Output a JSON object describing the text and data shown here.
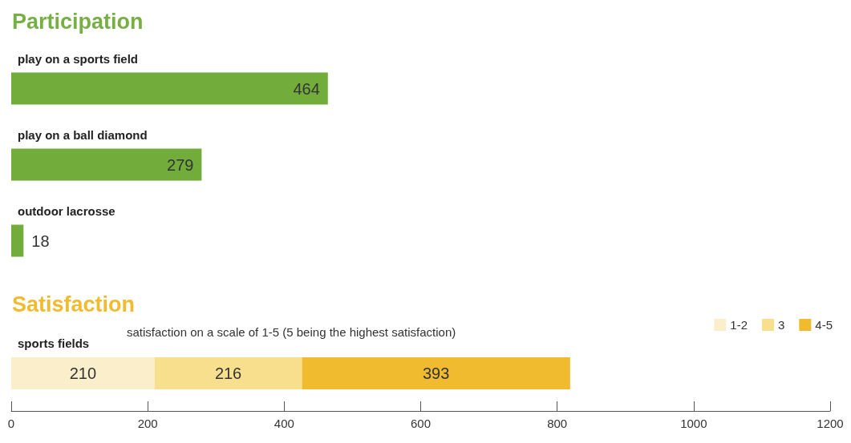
{
  "chart_data": [
    {
      "type": "bar",
      "title": "Participation",
      "orientation": "horizontal",
      "categories": [
        "play on a sports field",
        "play on a ball diamond",
        "outdoor lacrosse"
      ],
      "values": [
        464,
        279,
        18
      ],
      "color": "#72ad3c",
      "data_labels": true,
      "xlim": [
        0,
        1200
      ],
      "tick_labels": "y",
      "grid": false,
      "legend": false
    },
    {
      "type": "bar",
      "title": "Satisfaction",
      "subtitle": "satisfaction on a scale of 1-5 (5 being the highest satisfaction)",
      "orientation": "horizontal",
      "stacked": true,
      "categories": [
        "sports fields"
      ],
      "series": [
        {
          "name": "1-2",
          "color": "#fbeecb",
          "values": [
            210
          ]
        },
        {
          "name": "3",
          "color": "#f8df8e",
          "values": [
            216
          ]
        },
        {
          "name": "4-5",
          "color": "#f1bb2f",
          "values": [
            393
          ]
        }
      ],
      "data_labels": true,
      "xlim": [
        0,
        1200
      ],
      "xticks": [
        0,
        200,
        400,
        600,
        800,
        1000,
        1200
      ],
      "grid": false,
      "legend": "top right"
    }
  ]
}
